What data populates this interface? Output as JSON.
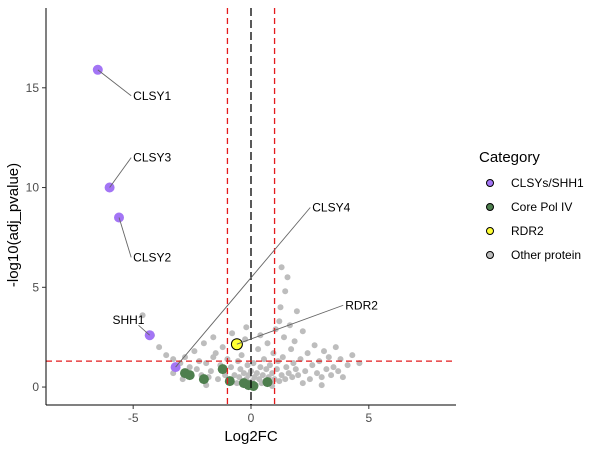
{
  "chart_data": {
    "type": "scatter",
    "title": "",
    "xlabel": "Log2FC",
    "ylabel": "-log10(adj_pvalue)",
    "xlim": [
      -8.7,
      8.7
    ],
    "ylim": [
      -0.9,
      19.0
    ],
    "x_ticks": [
      -5,
      0,
      5
    ],
    "y_ticks": [
      0,
      5,
      10,
      15
    ],
    "grid": false,
    "thresholds": {
      "vertical_red": [
        -1,
        1
      ],
      "vertical_black": [
        0
      ],
      "horizontal_red": [
        1.3
      ]
    },
    "legend": {
      "title": "Category",
      "placement": "right",
      "entries": [
        {
          "label": "CLSYs/SHH1",
          "color": "#A375F5"
        },
        {
          "label": "Core Pol IV",
          "color": "#4E7F4E"
        },
        {
          "label": "RDR2",
          "color": "#FFFF33"
        },
        {
          "label": "Other protein",
          "color": "#BDBDBD"
        }
      ]
    },
    "series": [
      {
        "name": "CLSYs/SHH1",
        "color": "#A375F5",
        "points": [
          {
            "x": -6.5,
            "y": 15.9,
            "label": "CLSY1"
          },
          {
            "x": -6.0,
            "y": 10.0,
            "label": "CLSY3"
          },
          {
            "x": -5.6,
            "y": 8.5,
            "label": "CLSY2"
          },
          {
            "x": -4.3,
            "y": 2.6,
            "label": "SHH1"
          },
          {
            "x": -3.2,
            "y": 1.0,
            "label": "CLSY4"
          }
        ]
      },
      {
        "name": "Core Pol IV",
        "color": "#4E7F4E",
        "points": [
          {
            "x": -2.8,
            "y": 0.7
          },
          {
            "x": -2.6,
            "y": 0.6
          },
          {
            "x": -2.0,
            "y": 0.4
          },
          {
            "x": -1.2,
            "y": 0.9
          },
          {
            "x": -0.9,
            "y": 0.3
          },
          {
            "x": -0.3,
            "y": 0.2
          },
          {
            "x": -0.1,
            "y": 0.1
          },
          {
            "x": 0.1,
            "y": 0.05
          },
          {
            "x": 0.7,
            "y": 0.25
          }
        ]
      },
      {
        "name": "RDR2",
        "color": "#FFFF33",
        "points": [
          {
            "x": -0.6,
            "y": 2.15,
            "label": "RDR2"
          }
        ]
      },
      {
        "name": "Other protein",
        "color": "#BDBDBD",
        "points": [
          {
            "x": -4.6,
            "y": 3.6
          },
          {
            "x": -4.2,
            "y": 2.6
          },
          {
            "x": -3.9,
            "y": 2.0
          },
          {
            "x": -3.6,
            "y": 1.6
          },
          {
            "x": -3.3,
            "y": 1.4
          },
          {
            "x": -3.0,
            "y": 1.2
          },
          {
            "x": -2.8,
            "y": 1.5
          },
          {
            "x": -2.6,
            "y": 1.0
          },
          {
            "x": -2.4,
            "y": 1.8
          },
          {
            "x": -2.3,
            "y": 0.9
          },
          {
            "x": -2.1,
            "y": 0.6
          },
          {
            "x": -2.0,
            "y": 2.2
          },
          {
            "x": -1.9,
            "y": 1.2
          },
          {
            "x": -1.8,
            "y": 0.5
          },
          {
            "x": -1.7,
            "y": 0.8
          },
          {
            "x": -1.6,
            "y": 1.5
          },
          {
            "x": -1.5,
            "y": 1.7
          },
          {
            "x": -1.4,
            "y": 0.4
          },
          {
            "x": -1.3,
            "y": 1.1
          },
          {
            "x": -1.2,
            "y": 2.0
          },
          {
            "x": -1.1,
            "y": 0.6
          },
          {
            "x": -1.0,
            "y": 1.4
          },
          {
            "x": -0.95,
            "y": 0.3
          },
          {
            "x": -0.85,
            "y": 1.0
          },
          {
            "x": -0.8,
            "y": 2.7
          },
          {
            "x": -0.7,
            "y": 0.6
          },
          {
            "x": -0.6,
            "y": 0.2
          },
          {
            "x": -0.55,
            "y": 1.3
          },
          {
            "x": -0.5,
            "y": 0.5
          },
          {
            "x": -0.45,
            "y": 0.9
          },
          {
            "x": -0.4,
            "y": 1.6
          },
          {
            "x": -0.35,
            "y": 0.3
          },
          {
            "x": -0.3,
            "y": 0.7
          },
          {
            "x": -0.25,
            "y": 2.4
          },
          {
            "x": -0.2,
            "y": 0.4
          },
          {
            "x": -0.15,
            "y": 1.1
          },
          {
            "x": -0.1,
            "y": 0.6
          },
          {
            "x": -0.05,
            "y": 0.2
          },
          {
            "x": 0.0,
            "y": 0.8
          },
          {
            "x": 0.05,
            "y": 0.3
          },
          {
            "x": 0.1,
            "y": 1.2
          },
          {
            "x": 0.15,
            "y": 0.5
          },
          {
            "x": 0.2,
            "y": 0.1
          },
          {
            "x": 0.25,
            "y": 0.7
          },
          {
            "x": 0.3,
            "y": 1.9
          },
          {
            "x": 0.35,
            "y": 0.4
          },
          {
            "x": 0.4,
            "y": 1.0
          },
          {
            "x": 0.45,
            "y": 0.2
          },
          {
            "x": 0.5,
            "y": 0.6
          },
          {
            "x": 0.55,
            "y": 1.4
          },
          {
            "x": 0.6,
            "y": 0.3
          },
          {
            "x": 0.65,
            "y": 0.9
          },
          {
            "x": 0.7,
            "y": 2.2
          },
          {
            "x": 0.75,
            "y": 0.5
          },
          {
            "x": 0.8,
            "y": 1.1
          },
          {
            "x": 0.85,
            "y": 0.2
          },
          {
            "x": 0.9,
            "y": 0.7
          },
          {
            "x": 0.95,
            "y": 1.7
          },
          {
            "x": 1.0,
            "y": 0.4
          },
          {
            "x": 1.05,
            "y": 2.9
          },
          {
            "x": 1.1,
            "y": 0.9
          },
          {
            "x": 1.15,
            "y": 1.3
          },
          {
            "x": 1.2,
            "y": 0.3
          },
          {
            "x": 1.25,
            "y": 4.0
          },
          {
            "x": 1.3,
            "y": 0.6
          },
          {
            "x": 1.35,
            "y": 1.5
          },
          {
            "x": 1.4,
            "y": 2.5
          },
          {
            "x": 1.45,
            "y": 0.4
          },
          {
            "x": 1.5,
            "y": 1.0
          },
          {
            "x": 1.55,
            "y": 5.5
          },
          {
            "x": 1.6,
            "y": 0.7
          },
          {
            "x": 1.65,
            "y": 3.1
          },
          {
            "x": 1.7,
            "y": 1.9
          },
          {
            "x": 1.75,
            "y": 0.5
          },
          {
            "x": 1.8,
            "y": 1.2
          },
          {
            "x": 1.85,
            "y": 2.3
          },
          {
            "x": 1.9,
            "y": 0.9
          },
          {
            "x": 1.95,
            "y": 3.8
          },
          {
            "x": 2.0,
            "y": 0.6
          },
          {
            "x": 2.1,
            "y": 1.4
          },
          {
            "x": 2.2,
            "y": 2.8
          },
          {
            "x": 2.3,
            "y": 0.8
          },
          {
            "x": 2.4,
            "y": 1.7
          },
          {
            "x": 2.5,
            "y": 0.4
          },
          {
            "x": 2.6,
            "y": 1.1
          },
          {
            "x": 2.7,
            "y": 2.1
          },
          {
            "x": 2.8,
            "y": 0.7
          },
          {
            "x": 2.9,
            "y": 1.3
          },
          {
            "x": 3.0,
            "y": 0.5
          },
          {
            "x": 3.1,
            "y": 1.8
          },
          {
            "x": 3.2,
            "y": 0.9
          },
          {
            "x": 3.3,
            "y": 1.5
          },
          {
            "x": 3.4,
            "y": 0.6
          },
          {
            "x": 3.5,
            "y": 1.0
          },
          {
            "x": 3.6,
            "y": 2.0
          },
          {
            "x": 3.7,
            "y": 0.8
          },
          {
            "x": 3.8,
            "y": 1.4
          },
          {
            "x": 3.9,
            "y": 0.5
          },
          {
            "x": 4.1,
            "y": 1.1
          },
          {
            "x": 4.3,
            "y": 1.6
          },
          {
            "x": 4.6,
            "y": 1.2
          },
          {
            "x": 1.3,
            "y": 6.0
          },
          {
            "x": 1.45,
            "y": 4.8
          },
          {
            "x": 1.2,
            "y": 3.3
          },
          {
            "x": 0.4,
            "y": 2.6
          },
          {
            "x": -0.2,
            "y": 3.0
          },
          {
            "x": -1.6,
            "y": 2.5
          },
          {
            "x": -2.2,
            "y": 1.3
          },
          {
            "x": -2.9,
            "y": 0.4
          },
          {
            "x": -3.3,
            "y": 0.7
          },
          {
            "x": -1.9,
            "y": 0.1
          },
          {
            "x": 0.9,
            "y": 0.05
          },
          {
            "x": 2.2,
            "y": 0.2
          },
          {
            "x": 3.0,
            "y": 0.1
          }
        ]
      }
    ]
  }
}
